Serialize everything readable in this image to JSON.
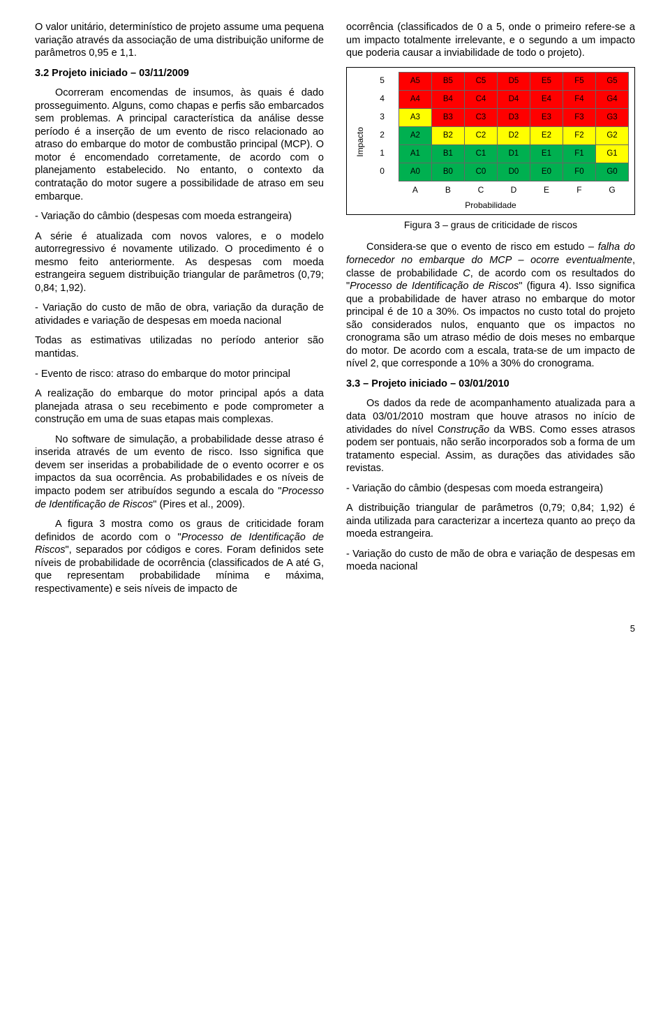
{
  "col_left": {
    "p1": "O valor unitário, determinístico de projeto assume uma pequena variação através da associação de uma distribuição uniforme de parâmetros 0,95 e 1,1.",
    "h2": "3.2 Projeto iniciado – 03/11/2009",
    "p2": "Ocorreram encomendas de insumos, às quais é dado prosseguimento. Alguns, como chapas e perfis são embarcados sem problemas. A principal característica da análise desse período é a inserção de um evento de risco relacionado ao atraso do embarque do motor de combustão principal (MCP). O motor é encomendado corretamente, de acordo com o planejamento estabelecido. No entanto, o contexto da contratação do motor sugere a possibilidade de atraso em seu embarque.",
    "p3": "- Variação do câmbio (despesas com moeda estrangeira)",
    "p4": "A série é atualizada com novos valores, e o modelo autorregressivo é novamente utilizado. O procedimento é o mesmo feito anteriormente. As despesas com moeda estrangeira seguem distribuição triangular de parâmetros (0,79; 0,84; 1,92).",
    "p5": "- Variação do custo de mão de obra, variação da duração de atividades e variação de despesas em moeda nacional",
    "p6": "Todas as estimativas utilizadas no período anterior são mantidas.",
    "p7": "- Evento de risco: atraso do embarque do motor principal",
    "p8": "A realização do embarque do motor principal após a data planejada atrasa o seu recebimento e pode comprometer a construção em uma de suas etapas mais complexas.",
    "p9a": "No software de simulação, a probabilidade desse atraso é inserida através de um evento de risco. Isso significa que devem ser inseridas a probabilidade de o evento ocorrer e os impactos da sua ocorrência. As probabilidades e os níveis de impacto podem ser atribuídos segundo a escala do \"",
    "p9b": "Processo de Identificação de Riscos",
    "p9c": "\" (Pires et al., 2009).",
    "p10a": "A figura 3 mostra como os graus de criticidade foram definidos de acordo com o \"",
    "p10b": "Processo de Identificação de Riscos",
    "p10c": "\", separados por códigos e cores. Foram definidos sete níveis de probabilidade de ocorrência (classificados de A até G, que representam probabilidade mínima e máxima, respectivamente) e seis níveis de impacto de"
  },
  "col_right": {
    "p1": "ocorrência (classificados de 0 a 5, onde o primeiro refere-se a um impacto totalmente irrelevante, e o segundo a um impacto que poderia causar a inviabilidade de todo o projeto).",
    "figure": {
      "ylabel": "Impacto",
      "xlabel": "Probabilidade",
      "rows_axis": [
        "5",
        "4",
        "3",
        "2",
        "1",
        "0"
      ],
      "cols_axis": [
        "A",
        "B",
        "C",
        "D",
        "E",
        "F",
        "G"
      ],
      "cells": [
        [
          "A5",
          "B5",
          "C5",
          "D5",
          "E5",
          "F5",
          "G5"
        ],
        [
          "A4",
          "B4",
          "C4",
          "D4",
          "E4",
          "F4",
          "G4"
        ],
        [
          "A3",
          "B3",
          "C3",
          "D3",
          "E3",
          "F3",
          "G3"
        ],
        [
          "A2",
          "B2",
          "C2",
          "D2",
          "E2",
          "F2",
          "G2"
        ],
        [
          "A1",
          "B1",
          "C1",
          "D1",
          "E1",
          "F1",
          "G1"
        ],
        [
          "A0",
          "B0",
          "C0",
          "D0",
          "E0",
          "F0",
          "G0"
        ]
      ],
      "colors": [
        [
          "#ff0000",
          "#ff0000",
          "#ff0000",
          "#ff0000",
          "#ff0000",
          "#ff0000",
          "#ff0000"
        ],
        [
          "#ff0000",
          "#ff0000",
          "#ff0000",
          "#ff0000",
          "#ff0000",
          "#ff0000",
          "#ff0000"
        ],
        [
          "#ffff00",
          "#ff0000",
          "#ff0000",
          "#ff0000",
          "#ff0000",
          "#ff0000",
          "#ff0000"
        ],
        [
          "#00b050",
          "#ffff00",
          "#ffff00",
          "#ffff00",
          "#ffff00",
          "#ffff00",
          "#ffff00"
        ],
        [
          "#00b050",
          "#00b050",
          "#00b050",
          "#00b050",
          "#00b050",
          "#00b050",
          "#ffff00"
        ],
        [
          "#00b050",
          "#00b050",
          "#00b050",
          "#00b050",
          "#00b050",
          "#00b050",
          "#00b050"
        ]
      ],
      "caption": "Figura 3 – graus de criticidade de riscos"
    },
    "p2a": "Considera-se que o evento de risco em estudo – ",
    "p2b": "falha do fornecedor no embarque do MCP – ocorre eventualmente",
    "p2c": ", classe de probabilidade ",
    "p2d": "C",
    "p2e": ", de acordo com os resultados do \"",
    "p2f": "Processo de Identificação de Riscos",
    "p2g": "\" (figura 4). Isso significa que a probabilidade de haver atraso no embarque do motor principal é de 10 a 30%. Os impactos no custo total do projeto são considerados nulos, enquanto que os impactos no cronograma são um atraso médio de dois meses no embarque do motor. De acordo com a escala, trata-se de um impacto de nível 2, que corresponde a 10% a 30% do cronograma.",
    "h2": "3.3 – Projeto iniciado – 03/01/2010",
    "p3a": "Os dados da rede de acompanhamento atualizada para a data 03/01/2010 mostram que houve atrasos no início de atividades do nível C",
    "p3b": "onstrução",
    "p3c": " da WBS. Como esses atrasos podem ser pontuais, não serão incorporados sob a forma de um tratamento especial. Assim, as durações das atividades são revistas.",
    "p4": "- Variação do câmbio (despesas com moeda estrangeira)",
    "p5": "A distribuição triangular de parâmetros (0,79; 0,84; 1,92) é ainda utilizada para caracterizar a incerteza quanto ao preço da moeda estrangeira.",
    "p6": "- Variação do custo de mão de obra e variação de despesas em moeda nacional"
  },
  "pagenum": "5"
}
